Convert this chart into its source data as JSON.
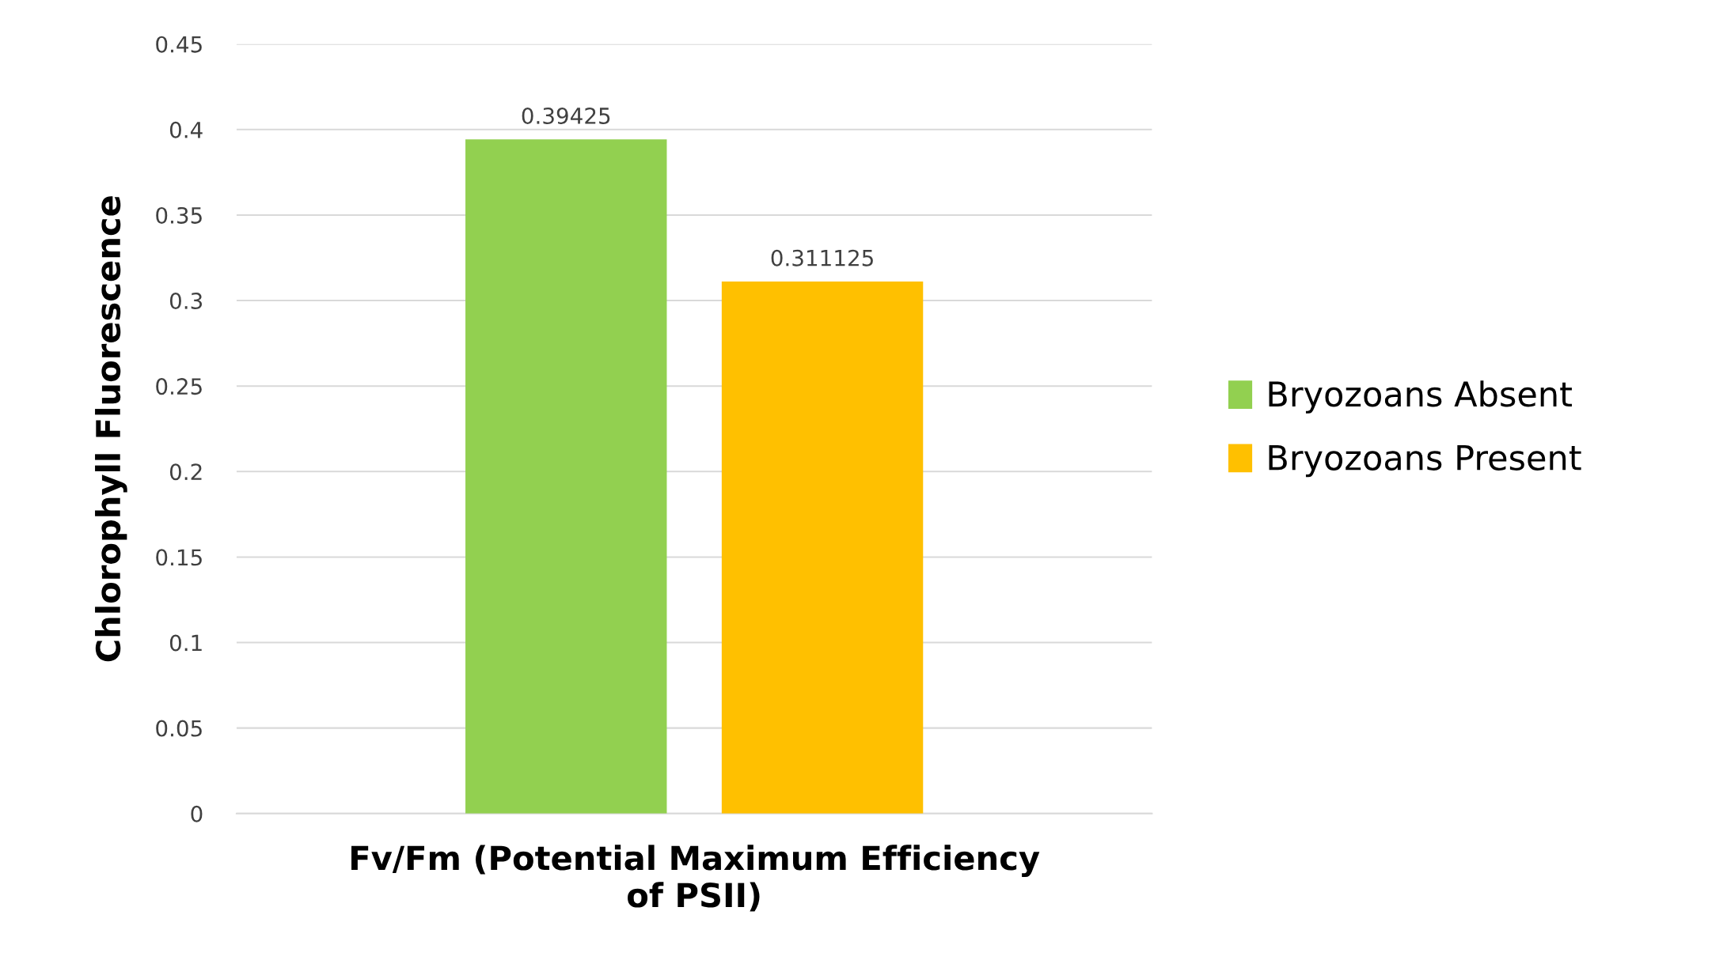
{
  "chart_data": {
    "type": "bar",
    "xlabel": "Fv/Fm (Potential Maximum Efficiency\nof PSII)",
    "ylabel": "Chlorophyll Fluorescence",
    "categories": [
      null
    ],
    "series": [
      {
        "name": "Bryozoans Absent",
        "color": "#92d050",
        "values": [
          0.39425
        ]
      },
      {
        "name": "Bryozoans Present",
        "color": "#ffc000",
        "values": [
          0.311125
        ]
      }
    ],
    "ylim": [
      0,
      0.45
    ],
    "yticks": [
      0,
      0.05,
      0.1,
      0.15,
      0.2,
      0.25,
      0.3,
      0.35,
      0.4,
      0.45
    ],
    "grid": "y",
    "legend": "right",
    "data_labels": true
  }
}
